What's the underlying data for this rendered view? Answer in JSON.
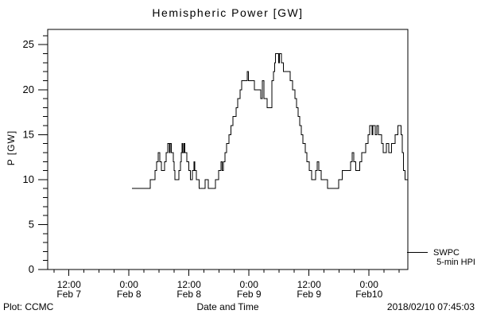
{
  "footer": {
    "left": "Plot: CCMC",
    "right": "2018/02/10 07:45:03"
  },
  "legend": {
    "source": "SWPC",
    "series": "5-min HPI"
  },
  "colors": {
    "background": "#ffffff",
    "foreground": "#000000",
    "line": "#000000"
  },
  "chart_data": {
    "type": "line",
    "line_style": "step-post",
    "title": "Hemispheric Power [GW]",
    "xlabel": "Date and Time",
    "ylabel": "P [GW]",
    "ylim": [
      0,
      26.7
    ],
    "y_major_ticks": [
      0,
      5,
      10,
      15,
      20,
      25
    ],
    "y_minor_interval_gw": 1,
    "x_unit": "hours from Feb 7 00:00",
    "x_range_hours": [
      7.75,
      79.75
    ],
    "x_minor_interval_hours": 3,
    "x_major_ticks": [
      {
        "t": 12,
        "time": "12:00",
        "date": "Feb 7"
      },
      {
        "t": 24,
        "time": "0:00",
        "date": "Feb 8"
      },
      {
        "t": 36,
        "time": "12:00",
        "date": "Feb 8"
      },
      {
        "t": 48,
        "time": "0:00",
        "date": "Feb 9"
      },
      {
        "t": 60,
        "time": "12:00",
        "date": "Feb 9"
      },
      {
        "t": 72,
        "time": "0:00",
        "date": "Feb10"
      }
    ],
    "grid": false,
    "legend_position": "right-outside-bottom",
    "series": [
      {
        "name": "SWPC 5-min HPI",
        "color": "#000000",
        "end_t": 79.75,
        "step_points_t_hours_value_gw": [
          [
            24.6,
            9
          ],
          [
            28.25,
            10
          ],
          [
            29.2,
            11
          ],
          [
            29.5,
            12
          ],
          [
            29.85,
            13
          ],
          [
            30.2,
            12
          ],
          [
            30.5,
            11
          ],
          [
            31.1,
            12
          ],
          [
            31.4,
            13
          ],
          [
            31.75,
            14
          ],
          [
            32.05,
            13
          ],
          [
            32.2,
            14
          ],
          [
            32.5,
            13
          ],
          [
            32.85,
            12
          ],
          [
            33.0,
            11
          ],
          [
            33.2,
            10
          ],
          [
            33.95,
            11
          ],
          [
            34.3,
            12
          ],
          [
            34.45,
            13
          ],
          [
            34.6,
            14
          ],
          [
            34.8,
            13
          ],
          [
            35.0,
            14
          ],
          [
            35.2,
            13
          ],
          [
            35.6,
            12
          ],
          [
            36.0,
            11
          ],
          [
            36.3,
            10
          ],
          [
            36.7,
            11
          ],
          [
            37.0,
            12
          ],
          [
            37.15,
            11
          ],
          [
            37.5,
            10
          ],
          [
            38.0,
            9
          ],
          [
            39.2,
            10
          ],
          [
            39.85,
            9
          ],
          [
            41.3,
            10
          ],
          [
            41.9,
            11
          ],
          [
            42.4,
            12
          ],
          [
            42.6,
            11
          ],
          [
            42.9,
            12
          ],
          [
            43.2,
            13
          ],
          [
            43.5,
            14
          ],
          [
            44.0,
            15
          ],
          [
            44.4,
            16
          ],
          [
            44.8,
            17
          ],
          [
            45.4,
            18
          ],
          [
            45.7,
            19
          ],
          [
            46.2,
            20
          ],
          [
            46.5,
            21
          ],
          [
            47.65,
            22
          ],
          [
            47.9,
            21
          ],
          [
            49.1,
            20
          ],
          [
            50.35,
            19
          ],
          [
            50.7,
            21
          ],
          [
            51.0,
            19
          ],
          [
            51.6,
            18
          ],
          [
            52.6,
            21
          ],
          [
            52.9,
            22
          ],
          [
            53.1,
            23
          ],
          [
            53.3,
            24
          ],
          [
            53.9,
            23
          ],
          [
            54.1,
            24
          ],
          [
            54.5,
            23
          ],
          [
            54.9,
            22
          ],
          [
            56.2,
            21
          ],
          [
            56.7,
            20
          ],
          [
            57.2,
            19
          ],
          [
            57.5,
            18
          ],
          [
            57.8,
            17
          ],
          [
            58.1,
            16
          ],
          [
            58.45,
            15
          ],
          [
            58.8,
            14
          ],
          [
            59.25,
            13
          ],
          [
            59.6,
            12
          ],
          [
            60.05,
            11
          ],
          [
            60.5,
            10
          ],
          [
            61.3,
            11
          ],
          [
            61.6,
            12
          ],
          [
            61.95,
            11
          ],
          [
            62.4,
            10
          ],
          [
            63.7,
            9
          ],
          [
            65.9,
            10
          ],
          [
            66.6,
            11
          ],
          [
            68.3,
            12
          ],
          [
            68.6,
            13
          ],
          [
            68.95,
            12
          ],
          [
            69.3,
            11
          ],
          [
            70.1,
            12
          ],
          [
            70.5,
            13
          ],
          [
            71.3,
            14
          ],
          [
            71.8,
            15
          ],
          [
            72.1,
            16
          ],
          [
            72.6,
            15
          ],
          [
            72.75,
            16
          ],
          [
            73.2,
            15
          ],
          [
            73.55,
            16
          ],
          [
            73.85,
            15
          ],
          [
            74.5,
            14
          ],
          [
            74.8,
            13
          ],
          [
            75.45,
            14
          ],
          [
            75.9,
            13
          ],
          [
            76.5,
            14
          ],
          [
            77.2,
            15
          ],
          [
            77.8,
            16
          ],
          [
            78.4,
            15
          ],
          [
            78.6,
            13
          ],
          [
            78.9,
            11
          ],
          [
            79.2,
            10
          ]
        ]
      }
    ]
  }
}
